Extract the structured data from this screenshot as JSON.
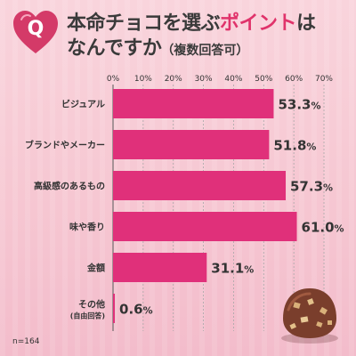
{
  "badge_letter": "Q",
  "title": {
    "part1": "本命チョコを選ぶ",
    "part2_highlight": "ポイント",
    "part3": "は",
    "part4": "なんですか",
    "part5": "（複数回答可）"
  },
  "sample_note": "n=164",
  "chart_data": {
    "type": "bar",
    "orientation": "horizontal",
    "x_ticks": [
      "0%",
      "10%",
      "20%",
      "30%",
      "40%",
      "50%",
      "60%",
      "70%"
    ],
    "xlim": [
      0,
      70
    ],
    "grid": true,
    "categories": [
      {
        "label": "ビジュアル",
        "sub": ""
      },
      {
        "label": "ブランドやメーカー",
        "sub": ""
      },
      {
        "label": "高級感のあるもの",
        "sub": ""
      },
      {
        "label": "味や香り",
        "sub": ""
      },
      {
        "label": "金額",
        "sub": ""
      },
      {
        "label": "その他",
        "sub": "(自由回答)"
      }
    ],
    "values": [
      53.3,
      51.8,
      57.3,
      61.0,
      31.1,
      0.6
    ],
    "value_labels": [
      "53.3",
      "51.8",
      "57.3",
      "61.0",
      "31.1",
      "0.6"
    ],
    "value_unit": "%",
    "bar_color": "#e0307a",
    "label_color": "#333333"
  }
}
